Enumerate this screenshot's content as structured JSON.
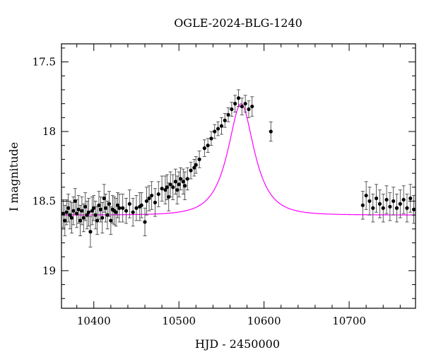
{
  "chart_data": {
    "type": "scatter",
    "title": "OGLE-2024-BLG-1240",
    "xlabel": "HJD - 2450000",
    "ylabel": "I magnitude",
    "xlim": [
      10362,
      10778
    ],
    "ylim": [
      19.27,
      17.37
    ],
    "y_inverted": true,
    "grid": false,
    "legend": "none",
    "x_ticks": [
      10400,
      10500,
      10600,
      10700
    ],
    "y_ticks": [
      17.5,
      18,
      18.5,
      19
    ],
    "y_tick_labels": [
      "17.5",
      "18",
      "18.5",
      "19"
    ],
    "colors": {
      "points": "#000000",
      "model": "#ff00ff"
    },
    "model": {
      "type": "microlensing-fit",
      "baseline_mag": 18.6,
      "peak_mag": 17.8,
      "t0": 10573,
      "tE": 26
    },
    "series": [
      {
        "x": [
          10364,
          10366,
          10368,
          10370,
          10372,
          10374,
          10376,
          10378,
          10380,
          10382,
          10384,
          10386,
          10388,
          10390,
          10392,
          10394,
          10396,
          10398,
          10400,
          10402,
          10404,
          10406,
          10408,
          10410,
          10412,
          10414,
          10416,
          10418,
          10420,
          10422,
          10424,
          10426,
          10428,
          10430,
          10434,
          10438,
          10442,
          10446,
          10450,
          10454,
          10456,
          10460,
          10462,
          10465,
          10468,
          10472,
          10476,
          10480,
          10484,
          10486,
          10488,
          10490,
          10493,
          10496,
          10498,
          10500,
          10502,
          10505,
          10507,
          10510,
          10514,
          10518,
          10520,
          10524,
          10530,
          10534,
          10538,
          10542,
          10546,
          10550,
          10554,
          10558,
          10562,
          10566,
          10570,
          10574,
          10578,
          10582,
          10586,
          10608,
          10716,
          10720,
          10724,
          10728,
          10732,
          10736,
          10740,
          10744,
          10748,
          10752,
          10756,
          10760,
          10764,
          10768,
          10772,
          10776
        ],
        "y": [
          18.59,
          18.64,
          18.58,
          18.55,
          18.6,
          18.62,
          18.57,
          18.5,
          18.59,
          18.56,
          18.64,
          18.57,
          18.62,
          18.54,
          18.6,
          18.58,
          18.72,
          18.57,
          18.55,
          18.6,
          18.64,
          18.53,
          18.56,
          18.62,
          18.48,
          18.55,
          18.6,
          18.52,
          18.64,
          18.56,
          18.57,
          18.58,
          18.53,
          18.55,
          18.55,
          18.57,
          18.52,
          18.58,
          18.55,
          18.54,
          18.53,
          18.65,
          18.5,
          18.48,
          18.46,
          18.51,
          18.45,
          18.41,
          18.42,
          18.4,
          18.47,
          18.38,
          18.4,
          18.36,
          18.42,
          18.38,
          18.34,
          18.36,
          18.39,
          18.34,
          18.28,
          18.26,
          18.24,
          18.2,
          18.12,
          18.1,
          18.05,
          18.0,
          17.98,
          17.96,
          17.92,
          17.88,
          17.84,
          17.8,
          17.76,
          17.82,
          17.8,
          17.84,
          17.82,
          18.0,
          18.53,
          18.46,
          18.5,
          18.55,
          18.48,
          18.52,
          18.55,
          18.49,
          18.54,
          18.5,
          18.55,
          18.52,
          18.49,
          18.55,
          18.48,
          18.56
        ],
        "err": [
          0.1,
          0.11,
          0.09,
          0.1,
          0.1,
          0.11,
          0.1,
          0.09,
          0.1,
          0.1,
          0.11,
          0.1,
          0.1,
          0.1,
          0.1,
          0.1,
          0.11,
          0.1,
          0.09,
          0.1,
          0.1,
          0.1,
          0.09,
          0.11,
          0.1,
          0.1,
          0.1,
          0.09,
          0.1,
          0.1,
          0.1,
          0.1,
          0.09,
          0.1,
          0.1,
          0.09,
          0.1,
          0.1,
          0.09,
          0.1,
          0.09,
          0.1,
          0.1,
          0.09,
          0.1,
          0.1,
          0.09,
          0.09,
          0.1,
          0.09,
          0.1,
          0.09,
          0.09,
          0.09,
          0.1,
          0.09,
          0.08,
          0.09,
          0.1,
          0.08,
          0.06,
          0.06,
          0.06,
          0.06,
          0.06,
          0.05,
          0.05,
          0.05,
          0.05,
          0.06,
          0.05,
          0.05,
          0.05,
          0.06,
          0.06,
          0.06,
          0.06,
          0.06,
          0.07,
          0.07,
          0.1,
          0.1,
          0.1,
          0.1,
          0.1,
          0.1,
          0.1,
          0.1,
          0.1,
          0.1,
          0.1,
          0.1,
          0.1,
          0.1,
          0.1,
          0.1
        ]
      }
    ]
  }
}
